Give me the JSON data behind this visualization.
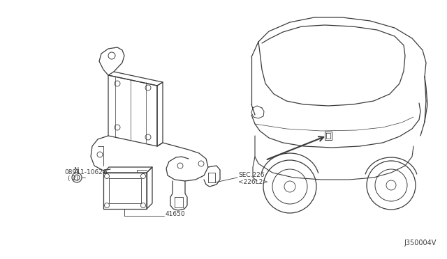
{
  "background_color": "#ffffff",
  "diagram_id": "J350004V",
  "labels": {
    "part1_number": "08911-1062G",
    "part1_qty": "( 2)",
    "part2_number": "41650",
    "part3_ref": "SEC.226",
    "part3_sub": "<226L2>"
  },
  "line_color": "#3a3a3a",
  "text_color": "#3a3a3a",
  "font_size_label": 6.5,
  "font_size_id": 7,
  "bracket_color": "#3a3a3a",
  "car_color": "#3a3a3a"
}
